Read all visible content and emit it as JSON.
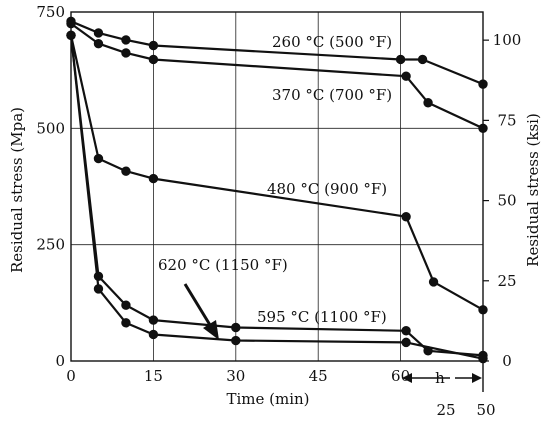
{
  "chart_data": {
    "type": "line",
    "xlabel": "Time (min)",
    "ylabel_left": "Residual stress (Mpa)",
    "ylabel_right": "Residual stress (ksi)",
    "xlim": [
      0,
      75
    ],
    "ylim": [
      0,
      750
    ],
    "x_ticks": [
      {
        "value": 0,
        "label": "0"
      },
      {
        "value": 15,
        "label": "15"
      },
      {
        "value": 30,
        "label": "30"
      },
      {
        "value": 45,
        "label": "45"
      },
      {
        "value": 60,
        "label": "60"
      }
    ],
    "y_ticks_left": [
      {
        "value": 0,
        "label": "0"
      },
      {
        "value": 250,
        "label": "250"
      },
      {
        "value": 500,
        "label": "500"
      },
      {
        "value": 750,
        "label": "750"
      }
    ],
    "y_ticks_right": [
      {
        "value": 0,
        "label": "0"
      },
      {
        "value": 172.4,
        "label": "25"
      },
      {
        "value": 344.7,
        "label": "50"
      },
      {
        "value": 517.1,
        "label": "75"
      },
      {
        "value": 689.5,
        "label": "100"
      }
    ],
    "hours_axis": {
      "label": "h",
      "left_tick": "25",
      "right_tick": "50",
      "x_hours_25": 67,
      "x_hours_50": 75
    },
    "grid": true,
    "series": [
      {
        "name": "260 °C (500 °F)",
        "points": [
          [
            0,
            730
          ],
          [
            5,
            705
          ],
          [
            10,
            690
          ],
          [
            15,
            678
          ],
          [
            60,
            648
          ],
          [
            64,
            648
          ],
          [
            75,
            595
          ]
        ]
      },
      {
        "name": "370 °C (700 °F)",
        "points": [
          [
            0,
            725
          ],
          [
            5,
            682
          ],
          [
            10,
            662
          ],
          [
            15,
            648
          ],
          [
            61,
            612
          ],
          [
            65,
            555
          ],
          [
            75,
            500
          ]
        ]
      },
      {
        "name": "480 °C (900 °F)",
        "points": [
          [
            0,
            700
          ],
          [
            5,
            435
          ],
          [
            10,
            408
          ],
          [
            15,
            392
          ],
          [
            61,
            310
          ],
          [
            66,
            170
          ],
          [
            75,
            110
          ]
        ]
      },
      {
        "name": "595 °C (1100 °F)",
        "points": [
          [
            0,
            700
          ],
          [
            5,
            182
          ],
          [
            10,
            120
          ],
          [
            15,
            88
          ],
          [
            30,
            72
          ],
          [
            61,
            65
          ],
          [
            65,
            22
          ],
          [
            75,
            12
          ]
        ]
      },
      {
        "name": "620 °C (1150 °F)",
        "points": [
          [
            0,
            700
          ],
          [
            5,
            155
          ],
          [
            10,
            82
          ],
          [
            15,
            57
          ],
          [
            30,
            44
          ],
          [
            61,
            40
          ],
          [
            75,
            5
          ]
        ]
      }
    ]
  }
}
